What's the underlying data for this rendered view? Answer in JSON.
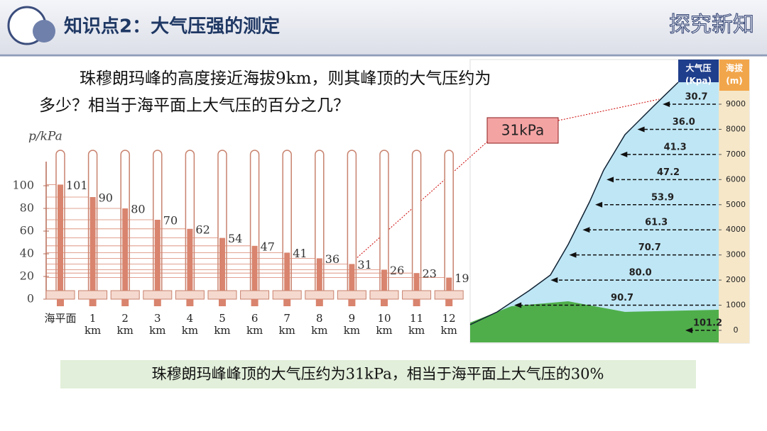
{
  "header": {
    "title": "知识点2：大气压强的测定",
    "tag": "探究新知"
  },
  "question": "珠穆朗玛峰的高度接近海拔9km，则其峰顶的大气压约为多少？相当于海平面上大气压的百分之几？",
  "callout": "31kPa",
  "conclusion": "珠穆朗玛峰峰顶的大气压约为31kPa，相当于海平面上大气压的30%",
  "chart_data": [
    {
      "type": "bar",
      "y_label": "p/kPa",
      "categories": [
        "海平面",
        "1 km",
        "2 km",
        "3 km",
        "4 km",
        "5 km",
        "6 km",
        "7 km",
        "8 km",
        "9 km",
        "10 km",
        "11 km",
        "12 km"
      ],
      "values": [
        101,
        90,
        80,
        70,
        62,
        54,
        47,
        41,
        36,
        31,
        26,
        23,
        19
      ],
      "color": "#d9846e",
      "ylim": [
        0,
        120
      ],
      "yticks": [
        0,
        20,
        40,
        60,
        80,
        100
      ]
    },
    {
      "type": "profile",
      "value_name": "大气压(Kpa)",
      "y_label": "海拔(m)",
      "y": [
        0,
        1000,
        2000,
        3000,
        4000,
        5000,
        6000,
        7000,
        8000,
        9000
      ],
      "values": [
        101.2,
        90.7,
        80,
        70.7,
        61.3,
        53.9,
        47.2,
        41.3,
        36,
        30.7
      ],
      "value_labels": [
        "101.2",
        "90.7",
        "80.0",
        "70.7",
        "61.3",
        "53.9",
        "47.2",
        "41.3",
        "36.0",
        "30.7"
      ],
      "ylim": [
        0,
        9000
      ],
      "yticks": [
        0,
        1000,
        2000,
        3000,
        4000,
        5000,
        6000,
        7000,
        8000,
        9000
      ]
    }
  ]
}
